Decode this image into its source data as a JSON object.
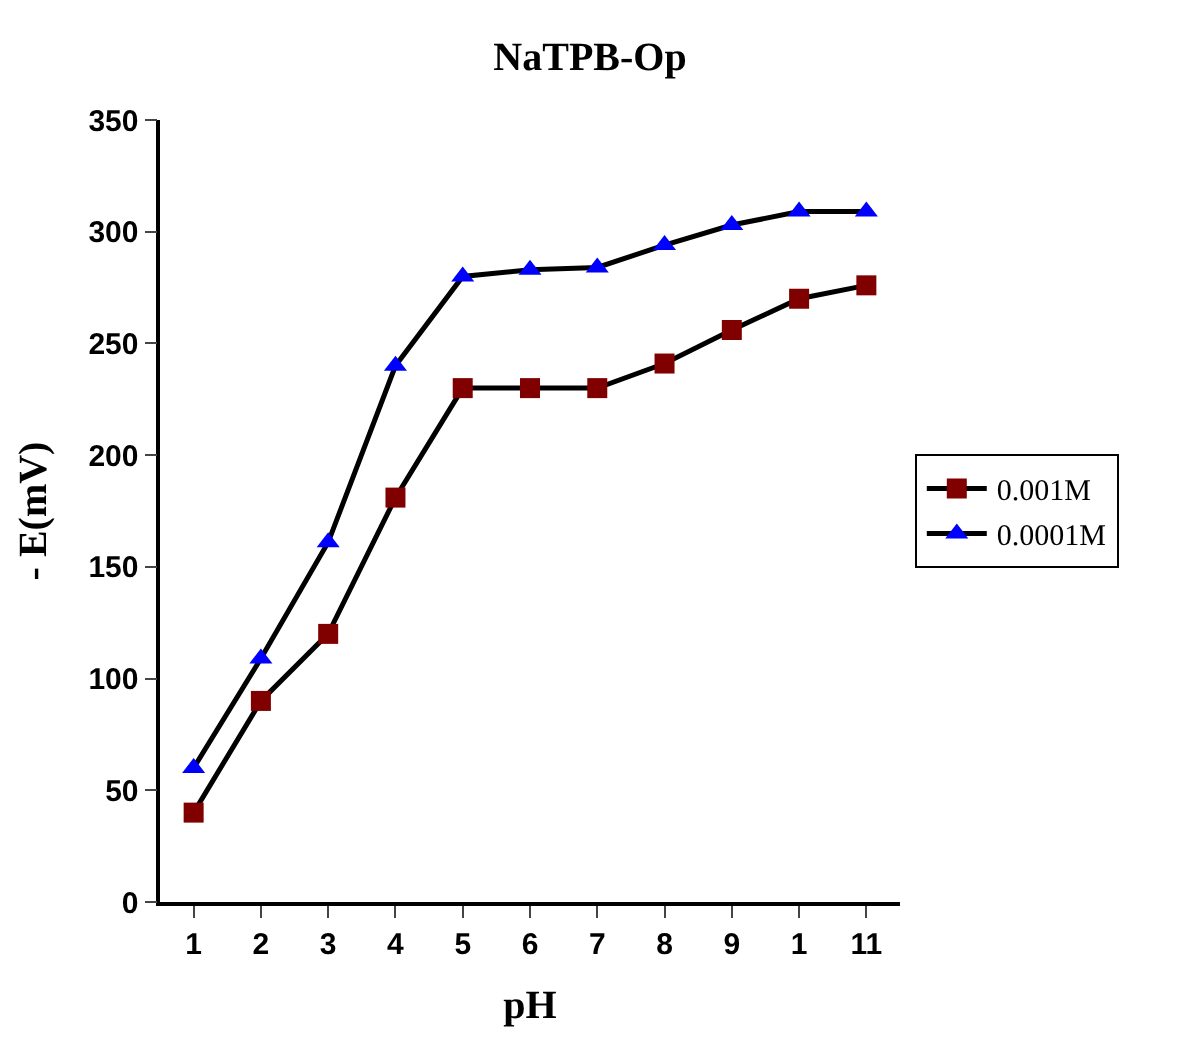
{
  "chart_data": {
    "type": "line",
    "title": "NaTPB-Op",
    "xlabel": "pH",
    "ylabel": "- E(mV)",
    "categories": [
      "1",
      "2",
      "3",
      "4",
      "5",
      "6",
      "7",
      "8",
      "9",
      "1",
      "11"
    ],
    "series": [
      {
        "name": "0.001M",
        "color": "#800000",
        "marker": "square",
        "values": [
          40,
          90,
          120,
          181,
          230,
          230,
          230,
          241,
          256,
          270,
          276
        ]
      },
      {
        "name": "0.0001M",
        "color": "#0000ff",
        "marker": "triangle",
        "values": [
          60,
          109,
          161,
          240,
          280,
          283,
          284,
          294,
          303,
          309,
          309
        ]
      }
    ],
    "ylim": [
      0,
      350
    ],
    "yticks": [
      0,
      50,
      100,
      150,
      200,
      250,
      300,
      350
    ],
    "grid": false,
    "legend": "right",
    "line_style": "solid"
  }
}
